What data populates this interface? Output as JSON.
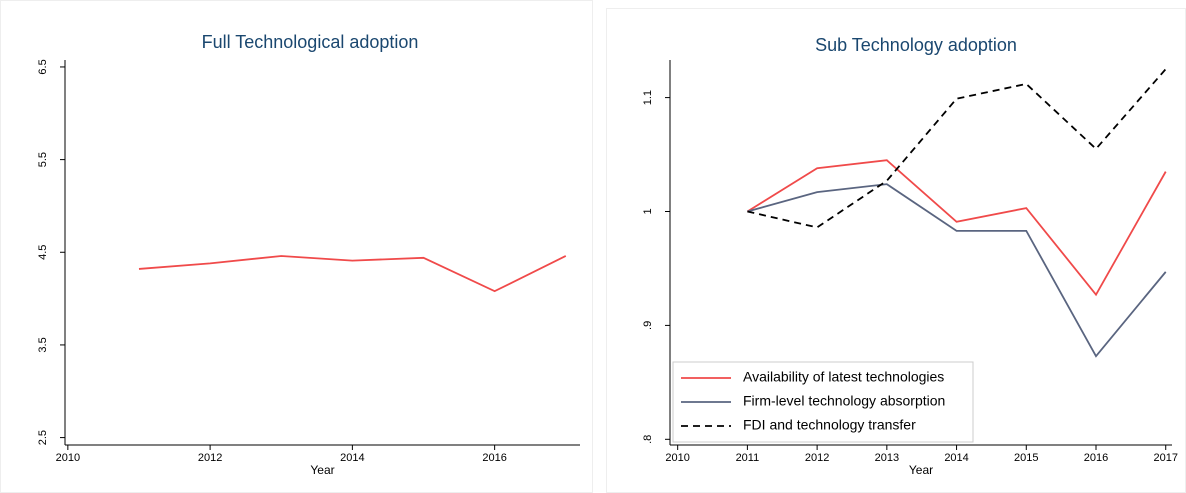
{
  "chart_data": [
    {
      "type": "line",
      "title": "Full Technological adoption",
      "x_label": "Year",
      "x": [
        2011,
        2012,
        2013,
        2014,
        2015,
        2016,
        2017
      ],
      "series": [
        {
          "name": "Full Technological adoption",
          "color": "#f04a4a",
          "style": "solid",
          "values": [
            4.32,
            4.38,
            4.46,
            4.41,
            4.44,
            4.08,
            4.46
          ]
        }
      ],
      "xlim": [
        2009.96,
        2017.2
      ],
      "xticks": [
        2010,
        2012,
        2014,
        2016
      ],
      "ylim": [
        2.42,
        6.575
      ],
      "yticks": [
        2.5,
        3.5,
        4.5,
        5.5,
        6.5
      ],
      "legend": false
    },
    {
      "type": "line",
      "title": "Sub Technology adoption",
      "x_label": "Year",
      "x": [
        2011,
        2012,
        2013,
        2014,
        2015,
        2016,
        2017
      ],
      "series": [
        {
          "name": "Availability of latest technologies",
          "color": "#f04a4a",
          "style": "solid",
          "values": [
            1.0,
            1.038,
            1.045,
            0.991,
            1.003,
            0.927,
            1.035
          ]
        },
        {
          "name": "Firm-level technology absorption",
          "color": "#5a6580",
          "style": "solid",
          "values": [
            1.0,
            1.017,
            1.024,
            0.983,
            0.983,
            0.873,
            0.947
          ]
        },
        {
          "name": "FDI and technology transfer",
          "color": "#000000",
          "style": "dashed",
          "values": [
            1.0,
            0.986,
            1.027,
            1.099,
            1.112,
            1.055,
            1.125
          ]
        }
      ],
      "xlim": [
        2009.89,
        2017.09
      ],
      "xticks": [
        2010,
        2011,
        2012,
        2013,
        2014,
        2015,
        2016,
        2017
      ],
      "ylim": [
        0.795,
        1.133
      ],
      "yticks": [
        {
          "value": 0.8,
          "label": ".8"
        },
        {
          "value": 0.9,
          "label": ".9"
        },
        1,
        1.1
      ],
      "legend": "lower left"
    }
  ]
}
